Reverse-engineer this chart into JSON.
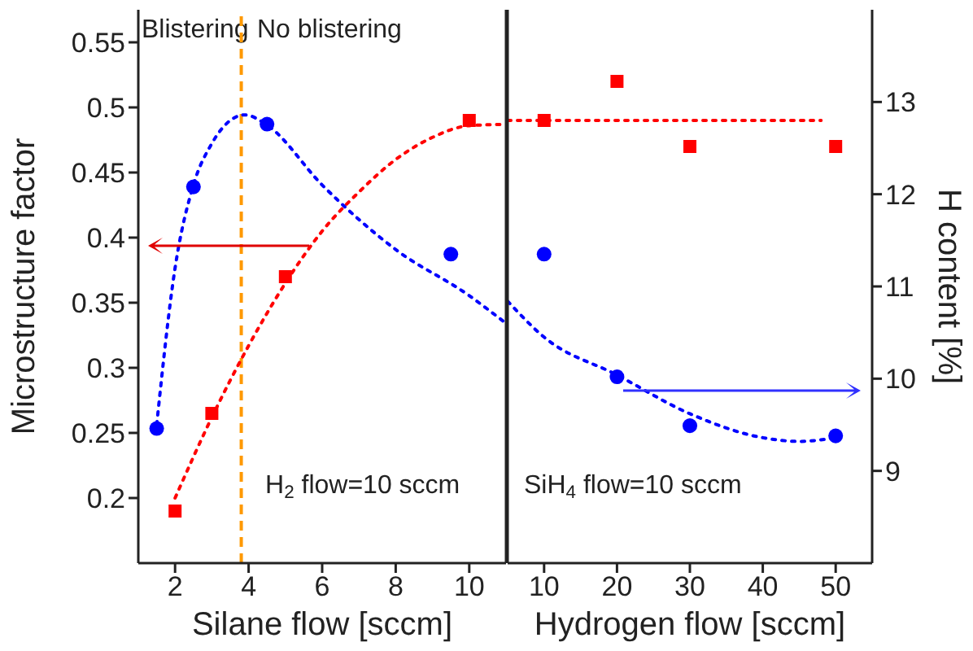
{
  "chart_data": [
    {
      "type": "scatter",
      "xlabel": "Silane flow [sccm]",
      "ylabel": "Microstructure factor",
      "xlim": [
        1,
        11
      ],
      "xticks": [
        2,
        4,
        6,
        8,
        10
      ],
      "ylim": [
        0.15,
        0.575
      ],
      "yticks": [
        0.2,
        0.25,
        0.3,
        0.35,
        0.4,
        0.45,
        0.5,
        0.55
      ],
      "y2lim": [
        8,
        14
      ],
      "grid": false,
      "legend": false,
      "ref_lines": [
        {
          "axis": "x",
          "value": 3.8,
          "color": "#ff9900",
          "line_style": "dashed"
        }
      ],
      "annotations": [
        "Blistering",
        "No blistering",
        "H$_{2}$ flow=10 sccm"
      ],
      "series": [
        {
          "marker": "square",
          "color": "#ff0000",
          "x": [
            2,
            3,
            5,
            10
          ],
          "values": [
            0.19,
            0.265,
            0.37,
            0.49
          ]
        },
        {
          "type": "line",
          "line_style": "dotted",
          "color": "#ff0000",
          "x": [
            2,
            3,
            4,
            5,
            6,
            7,
            8,
            9,
            10,
            11
          ],
          "values": [
            0.2,
            0.262,
            0.317,
            0.365,
            0.405,
            0.435,
            0.46,
            0.477,
            0.486,
            0.487
          ]
        },
        {
          "marker": "circle",
          "color": "#0000ff",
          "axis": "y2",
          "x": [
            1.5,
            2.5,
            4.5,
            9.5
          ],
          "values": [
            9.46,
            12.08,
            12.76,
            11.35
          ]
        },
        {
          "type": "line",
          "line_style": "dotted",
          "color": "#0000ff",
          "axis": "y2",
          "x": [
            1.5,
            2,
            2.5,
            3,
            3.5,
            3.9,
            4.5,
            6,
            8,
            10,
            11
          ],
          "values": [
            9.5,
            11.2,
            12.1,
            12.55,
            12.8,
            12.86,
            12.75,
            12.1,
            11.4,
            10.9,
            10.6
          ]
        }
      ]
    },
    {
      "type": "scatter",
      "xlabel": "Hydrogen flow [sccm]",
      "y2label": "H content [%]",
      "xlim": [
        5,
        55
      ],
      "xticks": [
        10,
        20,
        30,
        40,
        50
      ],
      "ylim": [
        0.15,
        0.575
      ],
      "y2lim": [
        8,
        14
      ],
      "y2ticks": [
        9,
        10,
        11,
        12,
        13
      ],
      "grid": false,
      "legend": false,
      "annotations": [
        "SiH$_{4}$ flow=10 sccm"
      ],
      "series": [
        {
          "marker": "square",
          "color": "#ff0000",
          "x": [
            10,
            20,
            30,
            50
          ],
          "values": [
            0.49,
            0.52,
            0.47,
            0.47
          ]
        },
        {
          "type": "line",
          "line_style": "dotted",
          "color": "#ff0000",
          "x": [
            5,
            48
          ],
          "values": [
            0.49,
            0.49
          ]
        },
        {
          "marker": "circle",
          "color": "#0000ff",
          "axis": "y2",
          "x": [
            10,
            20,
            30,
            50
          ],
          "values": [
            11.35,
            10.02,
            9.49,
            9.38
          ]
        },
        {
          "type": "line",
          "line_style": "dotted",
          "color": "#0000ff",
          "axis": "y2",
          "x": [
            5,
            10,
            20,
            30,
            40,
            45,
            50
          ],
          "values": [
            10.84,
            10.45,
            10.04,
            9.62,
            9.36,
            9.32,
            9.36
          ]
        }
      ]
    }
  ]
}
